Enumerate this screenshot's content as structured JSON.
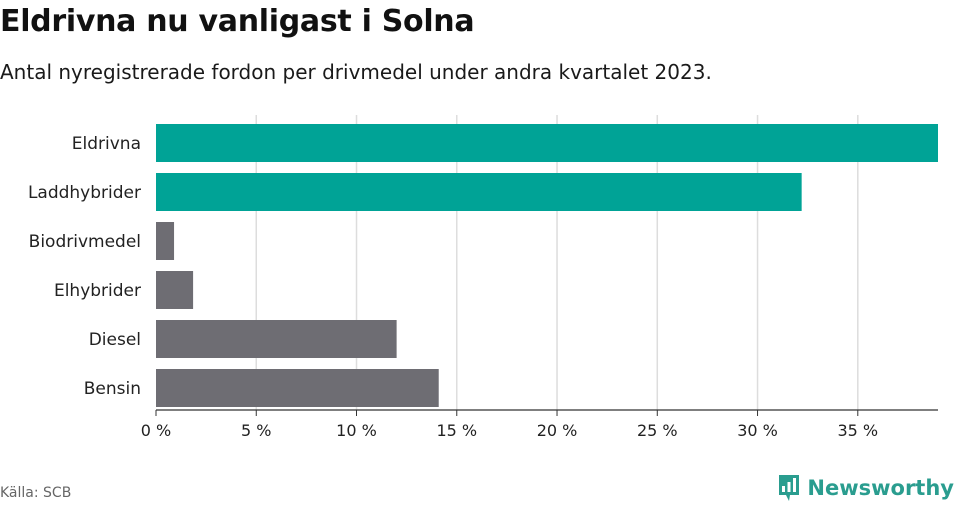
{
  "title": "Eldrivna nu vanligast i Solna",
  "subtitle": "Antal nyregistrerade fordon per drivmedel under andra kvartalet 2023.",
  "source": "Källa: SCB",
  "brand": {
    "name": "Newsworthy",
    "icon": "newsworthy-logo-icon"
  },
  "colors": {
    "highlight": "#00a396",
    "default": "#6e6d73",
    "grid": "#dddddd",
    "axis": "#333333",
    "brand": "#2a9d8f"
  },
  "chart_data": {
    "type": "bar",
    "orientation": "horizontal",
    "categories": [
      "Eldrivna",
      "Laddhybrider",
      "Biodrivmedel",
      "Elhybrider",
      "Diesel",
      "Bensin"
    ],
    "values": [
      39,
      32.2,
      0.9,
      1.85,
      12,
      14.1
    ],
    "highlighted": [
      true,
      true,
      false,
      false,
      false,
      false
    ],
    "xlim": [
      0,
      39
    ],
    "xticks": [
      0,
      5,
      10,
      15,
      20,
      25,
      30,
      35
    ],
    "xtick_labels": [
      "0 %",
      "5 %",
      "10 %",
      "15 %",
      "20 %",
      "25 %",
      "30 %",
      "35 %"
    ],
    "unit": "%",
    "xlabel": "",
    "ylabel": ""
  }
}
